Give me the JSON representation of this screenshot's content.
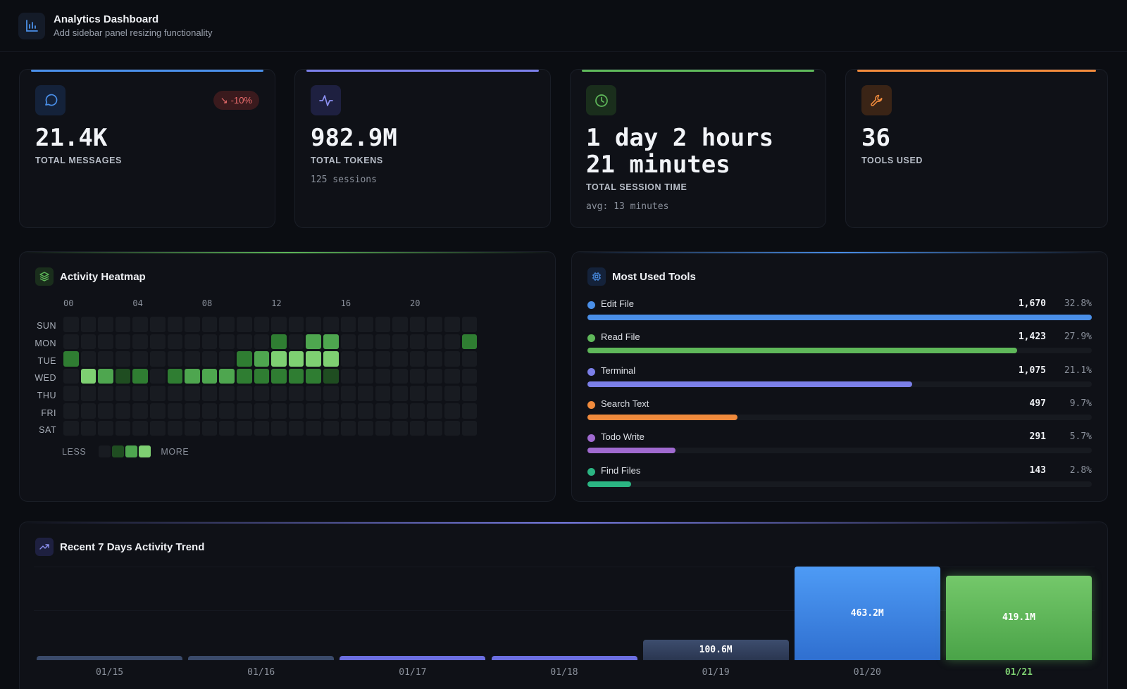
{
  "header": {
    "title": "Analytics Dashboard",
    "subtitle": "Add sidebar panel resizing functionality",
    "icon": "bar-chart-icon"
  },
  "stats": [
    {
      "icon": "message-icon",
      "accent": "#4a8fe8",
      "value": "21.4K",
      "label": "TOTAL MESSAGES",
      "badge": "-10%",
      "sub": ""
    },
    {
      "icon": "activity-icon",
      "accent": "#7b7fe8",
      "value": "982.9M",
      "label": "TOTAL TOKENS",
      "sub": "125 sessions"
    },
    {
      "icon": "clock-icon",
      "accent": "#5fb85a",
      "value": "1 day 2 hours 21 minutes",
      "label": "TOTAL SESSION TIME",
      "sub": "avg: 13 minutes"
    },
    {
      "icon": "wrench-icon",
      "accent": "#f08a3c",
      "value": "36",
      "label": "TOOLS USED",
      "sub": ""
    }
  ],
  "heatmap": {
    "title": "Activity Heatmap",
    "icon": "layers-icon",
    "hour_labels": [
      "00",
      "04",
      "08",
      "12",
      "16",
      "20"
    ],
    "days": [
      "SUN",
      "MON",
      "TUE",
      "WED",
      "THU",
      "FRI",
      "SAT"
    ],
    "levels": [
      [
        0,
        0,
        0,
        0,
        0,
        0,
        0,
        0,
        0,
        0,
        0,
        0,
        0,
        0,
        0,
        0,
        0,
        0,
        0,
        0,
        0,
        0,
        0,
        0
      ],
      [
        0,
        0,
        0,
        0,
        0,
        0,
        0,
        0,
        0,
        0,
        0,
        0,
        2,
        0,
        3,
        3,
        0,
        0,
        0,
        0,
        0,
        0,
        0,
        2
      ],
      [
        2,
        0,
        0,
        0,
        0,
        0,
        0,
        0,
        0,
        0,
        2,
        3,
        4,
        4,
        4,
        4,
        0,
        0,
        0,
        0,
        0,
        0,
        0,
        0
      ],
      [
        0,
        4,
        3,
        1,
        2,
        0,
        2,
        3,
        3,
        3,
        2,
        2,
        2,
        2,
        2,
        1,
        0,
        0,
        0,
        0,
        0,
        0,
        0,
        0
      ],
      [
        0,
        0,
        0,
        0,
        0,
        0,
        0,
        0,
        0,
        0,
        0,
        0,
        0,
        0,
        0,
        0,
        0,
        0,
        0,
        0,
        0,
        0,
        0,
        0
      ],
      [
        0,
        0,
        0,
        0,
        0,
        0,
        0,
        0,
        0,
        0,
        0,
        0,
        0,
        0,
        0,
        0,
        0,
        0,
        0,
        0,
        0,
        0,
        0,
        0
      ],
      [
        0,
        0,
        0,
        0,
        0,
        0,
        0,
        0,
        0,
        0,
        0,
        0,
        0,
        0,
        0,
        0,
        0,
        0,
        0,
        0,
        0,
        0,
        0,
        0
      ]
    ],
    "legend_less": "LESS",
    "legend_more": "MORE"
  },
  "tools": {
    "title": "Most Used Tools",
    "icon": "chip-icon",
    "items": [
      {
        "name": "Edit File",
        "count": "1,670",
        "pct": "32.8%",
        "share": 1.0,
        "color": "#4a8fe8"
      },
      {
        "name": "Read File",
        "count": "1,423",
        "pct": "27.9%",
        "share": 0.852,
        "color": "#5fb85a"
      },
      {
        "name": "Terminal",
        "count": "1,075",
        "pct": "21.1%",
        "share": 0.644,
        "color": "#7b7fe8"
      },
      {
        "name": "Search Text",
        "count": "497",
        "pct": "9.7%",
        "share": 0.298,
        "color": "#f08a3c"
      },
      {
        "name": "Todo Write",
        "count": "291",
        "pct": "5.7%",
        "share": 0.174,
        "color": "#a06ad0"
      },
      {
        "name": "Find Files",
        "count": "143",
        "pct": "2.8%",
        "share": 0.086,
        "color": "#2bb583"
      }
    ]
  },
  "trend": {
    "title": "Recent 7 Days Activity Trend",
    "icon": "trending-up-icon",
    "chart_data": {
      "type": "bar",
      "categories": [
        "01/15",
        "01/16",
        "01/17",
        "01/18",
        "01/19",
        "01/20",
        "01/21"
      ],
      "values": [
        5,
        5,
        6,
        6,
        100.6,
        463.2,
        419.1
      ],
      "value_labels": [
        "",
        "",
        "",
        "",
        "100.6M",
        "463.2M",
        "419.1M"
      ],
      "colors": [
        "#3a4a6a",
        "#3a4a6a",
        "#6b6ee0",
        "#6b6ee0",
        "#34435f",
        "#3b84ea",
        "#5fb85a"
      ],
      "ylim": [
        0,
        463.2
      ]
    }
  }
}
